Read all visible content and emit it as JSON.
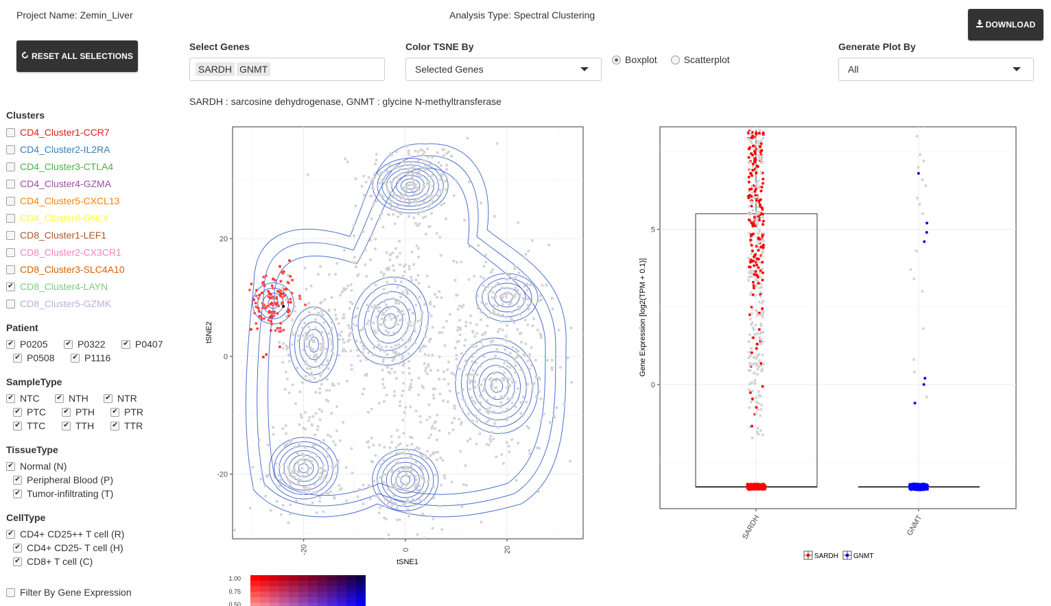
{
  "header": {
    "project_name": "Project Name: Zemin_Liver",
    "analysis_type": "Analysis Type: Spectral Clustering",
    "download_label": "DOWNLOAD",
    "reset_label": "RESET ALL SELECTIONS"
  },
  "controls": {
    "select_genes": {
      "label": "Select Genes",
      "chips": [
        "SARDH",
        "GNMT"
      ]
    },
    "color_tsne": {
      "label": "Color TSNE By",
      "value": "Selected Genes"
    },
    "plot_type": {
      "options": [
        "Boxplot",
        "Scatterplot"
      ],
      "selected": "Boxplot"
    },
    "generate_plot": {
      "label": "Generate Plot By",
      "value": "All"
    },
    "gene_description": "SARDH : sarcosine dehydrogenase, GNMT : glycine N-methyltransferase"
  },
  "sidebar": {
    "clusters": {
      "title": "Clusters",
      "items": [
        {
          "label": "CD4_Cluster1-CCR7",
          "color": "#e41a1c",
          "checked": false
        },
        {
          "label": "CD4_Cluster2-IL2RA",
          "color": "#377eb8",
          "checked": false
        },
        {
          "label": "CD4_Cluster3-CTLA4",
          "color": "#4daf4a",
          "checked": false
        },
        {
          "label": "CD4_Cluster4-GZMA",
          "color": "#984ea3",
          "checked": false
        },
        {
          "label": "CD4_Cluster5-CXCL13",
          "color": "#ff7f00",
          "checked": false
        },
        {
          "label": "CD4_Cluster6-GNLY",
          "color": "#ffff33",
          "checked": false
        },
        {
          "label": "CD8_Cluster1-LEF1",
          "color": "#a65628",
          "checked": false
        },
        {
          "label": "CD8_Cluster2-CX3CR1",
          "color": "#f781bf",
          "checked": false
        },
        {
          "label": "CD8_Cluster3-SLC4A10",
          "color": "#d95f02",
          "checked": false
        },
        {
          "label": "CD8_Cluster4-LAYN",
          "color": "#7fc97f",
          "checked": true
        },
        {
          "label": "CD8_Cluster5-GZMK",
          "color": "#beaed4",
          "checked": false
        }
      ]
    },
    "patient": {
      "title": "Patient",
      "rows": [
        [
          {
            "label": "P0205",
            "checked": true
          },
          {
            "label": "P0322",
            "checked": true
          },
          {
            "label": "P0407",
            "checked": true
          }
        ],
        [
          {
            "label": "P0508",
            "checked": true
          },
          {
            "label": "P1116",
            "checked": true
          }
        ]
      ]
    },
    "sample_type": {
      "title": "SampleType",
      "rows": [
        [
          {
            "label": "NTC",
            "checked": true
          },
          {
            "label": "NTH",
            "checked": true
          },
          {
            "label": "NTR",
            "checked": true
          }
        ],
        [
          {
            "label": "PTC",
            "checked": true
          },
          {
            "label": "PTH",
            "checked": true
          },
          {
            "label": "PTR",
            "checked": true
          }
        ],
        [
          {
            "label": "TTC",
            "checked": true
          },
          {
            "label": "TTH",
            "checked": true
          },
          {
            "label": "TTR",
            "checked": true
          }
        ]
      ]
    },
    "tissue_type": {
      "title": "TissueType",
      "items": [
        {
          "label": "Normal (N)",
          "checked": true
        },
        {
          "label": "Peripheral Blood (P)",
          "checked": true
        },
        {
          "label": "Tumor-infiltrating (T)",
          "checked": true
        }
      ]
    },
    "cell_type": {
      "title": "CellType",
      "items": [
        {
          "label": "CD4+ CD25++ T cell (R)",
          "checked": true
        },
        {
          "label": "CD4+ CD25- T cell (H)",
          "checked": true
        },
        {
          "label": "CD8+ T cell (C)",
          "checked": true
        }
      ]
    },
    "filter_label": "Filter By Gene Expression",
    "filter_checked": false
  },
  "colors": {
    "contour": "#4a6fd1",
    "point_gray": "#d3d3d3",
    "sardh": "#ff0000",
    "gnmt": "#0000ff",
    "button_dark": "#333333"
  },
  "chart_data": [
    {
      "type": "scatter",
      "title": "",
      "xlabel": "tSNE1",
      "ylabel": "tSNE2",
      "xlim": [
        -34,
        35
      ],
      "ylim": [
        -31,
        39
      ],
      "x_ticks": [
        -20,
        0,
        20
      ],
      "y_ticks": [
        -20,
        0,
        20
      ],
      "grid": true,
      "density_peaks": [
        {
          "x": 1,
          "y": 29
        },
        {
          "x": -20,
          "y": -19
        },
        {
          "x": 0,
          "y": -21
        },
        {
          "x": 18,
          "y": -5
        },
        {
          "x": 20,
          "y": 10
        },
        {
          "x": -3,
          "y": 6
        },
        {
          "x": -18,
          "y": 2
        },
        {
          "x": -26,
          "y": 9
        }
      ],
      "highlight_cluster": {
        "center_x": -26,
        "center_y": 9
      },
      "colorbar": {
        "ticks": [
          "1.00",
          "0.75",
          "0.50"
        ]
      }
    },
    {
      "type": "box",
      "title": "",
      "xlabel": "",
      "ylabel": "Gene Expression [log2(TPM + 0.1)]",
      "ylim": [
        -4,
        8.3
      ],
      "y_ticks": [
        0,
        5
      ],
      "categories": [
        "SARDH",
        "GNMT"
      ],
      "series": [
        {
          "name": "SARDH",
          "q1": -3.3,
          "median": -3.3,
          "q3": 5.5,
          "whisker_low": -3.3,
          "whisker_high": 8.2
        },
        {
          "name": "GNMT",
          "q1": -3.3,
          "median": -3.3,
          "q3": -3.3,
          "whisker_low": -3.3,
          "whisker_high": -3.3
        }
      ],
      "legend": {
        "placement": "bottom",
        "entries": [
          "SARDH",
          "GNMT"
        ]
      }
    }
  ]
}
